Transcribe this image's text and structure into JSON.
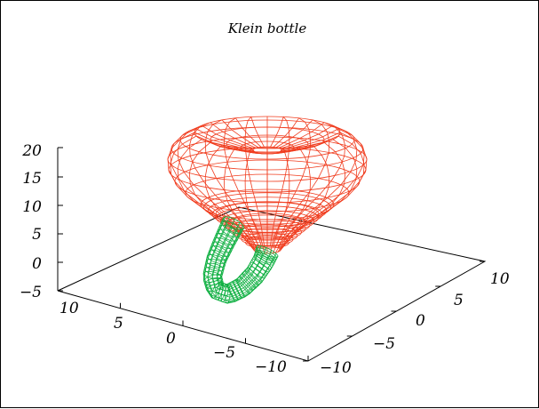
{
  "chart_data": {
    "type": "surface",
    "title": "Klein bottle",
    "x_ticks": [
      "10",
      "5",
      "0",
      "−5",
      "−10"
    ],
    "y_ticks": [
      "−10",
      "−5",
      "0",
      "5",
      "10"
    ],
    "z_ticks": [
      "20",
      "15",
      "10",
      "5",
      "0",
      "−5"
    ],
    "xlim": [
      -10,
      10
    ],
    "ylim": [
      -10,
      10
    ],
    "zlim": [
      -5,
      20
    ],
    "grid": false,
    "series": [
      {
        "part": "bulb",
        "color": "#f03c1e"
      },
      {
        "part": "handle",
        "color": "#11b043"
      }
    ]
  }
}
